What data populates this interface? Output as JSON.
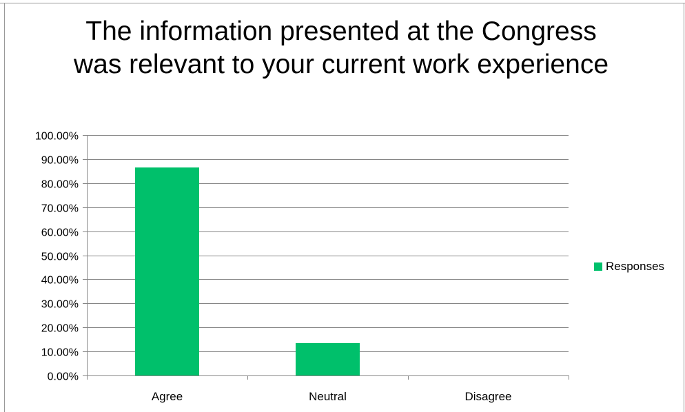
{
  "chart_data": {
    "type": "bar",
    "title": "The information presented at the Congress was relevant to your current work experience",
    "categories": [
      "Agree",
      "Neutral",
      "Disagree"
    ],
    "series": [
      {
        "name": "Responses",
        "values": [
          86.5,
          13.5,
          0.0
        ],
        "color": "#00c06b"
      }
    ],
    "ylim": [
      0,
      100
    ],
    "yticks": [
      "0.00%",
      "10.00%",
      "20.00%",
      "30.00%",
      "40.00%",
      "50.00%",
      "60.00%",
      "70.00%",
      "80.00%",
      "90.00%",
      "100.00%"
    ],
    "grid": true,
    "legend_position": "right"
  }
}
